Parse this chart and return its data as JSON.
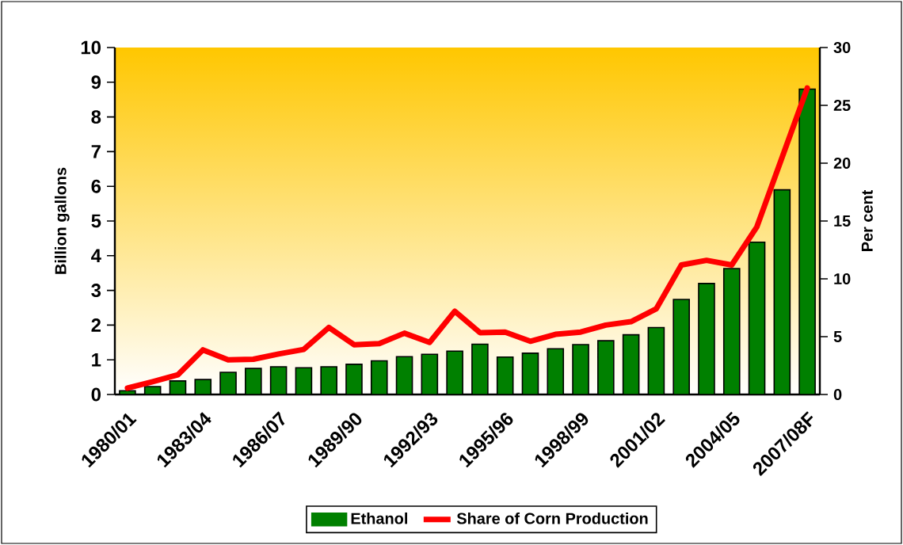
{
  "chart_data": {
    "type": "bar",
    "categories": [
      "1980/01",
      null,
      null,
      "1983/04",
      null,
      null,
      "1986/07",
      null,
      null,
      "1989/90",
      null,
      null,
      "1992/93",
      null,
      null,
      "1995/96",
      null,
      null,
      "1998/99",
      null,
      null,
      "2001/02",
      null,
      null,
      "2004/05",
      null,
      null,
      "2007/08F"
    ],
    "series": [
      {
        "name": "Ethanol",
        "color": "#008000",
        "values": [
          0.11,
          0.23,
          0.39,
          0.43,
          0.64,
          0.75,
          0.8,
          0.77,
          0.8,
          0.87,
          0.97,
          1.09,
          1.16,
          1.25,
          1.45,
          1.08,
          1.19,
          1.32,
          1.44,
          1.55,
          1.72,
          1.93,
          2.74,
          3.2,
          3.63,
          4.39,
          5.9,
          8.8
        ]
      },
      {
        "name": "Share of Corn Production",
        "type": "line",
        "axis": "y2",
        "color": "#ff0000",
        "values": [
          0.55,
          1.1,
          1.7,
          3.86,
          3.0,
          3.05,
          3.5,
          3.9,
          5.8,
          4.3,
          4.4,
          5.3,
          4.5,
          7.2,
          5.35,
          5.4,
          4.6,
          5.2,
          5.4,
          6.0,
          6.3,
          7.4,
          11.2,
          11.6,
          11.2,
          14.5,
          20.5,
          26.5
        ]
      }
    ],
    "ylabel": "Billion gallons",
    "y2label": "Per cent",
    "ylim": [
      0,
      10
    ],
    "yticks": [
      0,
      1,
      2,
      3,
      4,
      5,
      6,
      7,
      8,
      9,
      10
    ],
    "y2lim": [
      0,
      30
    ],
    "y2ticks": [
      0,
      5,
      10,
      15,
      20,
      25,
      30
    ],
    "legend": "bottom"
  }
}
